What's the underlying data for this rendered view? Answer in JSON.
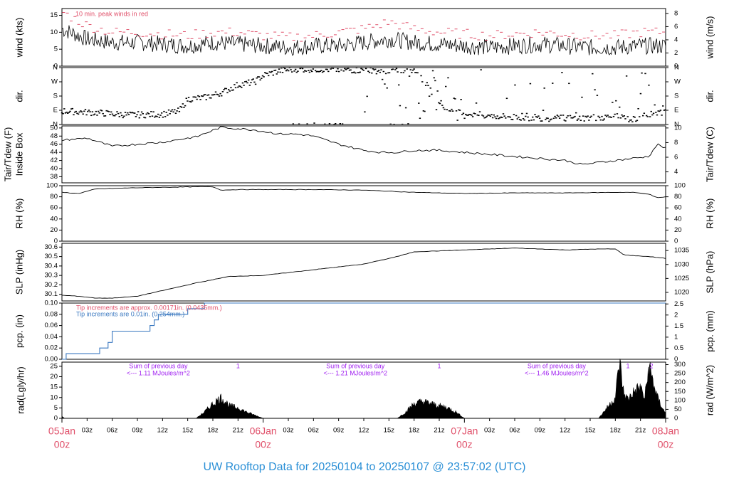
{
  "title": "UW Rooftop Data for 20250104  to  20250107 @ 23:57:02  (UTC)",
  "colors": {
    "title": "#2a8fd6",
    "peak": "#e0506a",
    "precip_line": "#3a78c0",
    "rad_annot": "#a020f0",
    "date_label": "#e0506a",
    "trace": "#000000"
  },
  "chart_data": [
    {
      "type": "line",
      "name": "wind",
      "ylabel_left": "wind (kts)",
      "ylabel_right": "wind (m/s)",
      "ylim": [
        0,
        17
      ],
      "yticks_left": [
        0,
        5,
        10,
        15
      ],
      "yticks_right": [
        0,
        2,
        4,
        6,
        8
      ],
      "annotation": "10 min. peak winds in red",
      "series": [
        {
          "name": "mean",
          "x": [
            0,
            3,
            6,
            9,
            12,
            15,
            18,
            21,
            24,
            27,
            30,
            33,
            36,
            39,
            42,
            45,
            48,
            51,
            54,
            57,
            60,
            63,
            66,
            69,
            72
          ],
          "values": [
            11,
            8,
            7,
            7,
            6.5,
            6,
            7,
            6.5,
            6,
            5.5,
            6,
            6,
            7,
            8,
            7,
            6.5,
            6,
            5.5,
            6,
            6.5,
            6,
            5.5,
            5.5,
            6,
            6
          ]
        },
        {
          "name": "peak",
          "x": [
            0,
            3,
            6,
            9,
            12,
            15,
            18,
            21,
            24,
            27,
            30,
            33,
            36,
            39,
            42,
            45,
            48,
            51,
            54,
            57,
            60,
            63,
            66,
            69,
            72
          ],
          "values": [
            16,
            12,
            10,
            10,
            9.5,
            9,
            10,
            10,
            9,
            8.5,
            9,
            10,
            11,
            13,
            11,
            10,
            9.5,
            9,
            9.5,
            10,
            9.5,
            9,
            9,
            10,
            10
          ]
        }
      ]
    },
    {
      "type": "scatter",
      "name": "direction",
      "ylabel_left": "dir.",
      "ylabel_right": "dir.",
      "ytick_labels": [
        "N",
        "E",
        "S",
        "W",
        "N"
      ],
      "ylim": [
        0,
        360
      ],
      "series": [
        {
          "name": "dir",
          "x": [
            0,
            4,
            8,
            12,
            14,
            15,
            17,
            19,
            21,
            23,
            24,
            26,
            28,
            30,
            34,
            38,
            42,
            46,
            50,
            54,
            58,
            62,
            66,
            68,
            70,
            72
          ],
          "values": [
            85,
            75,
            60,
            65,
            85,
            160,
            170,
            200,
            250,
            270,
            310,
            340,
            350,
            350,
            345,
            340,
            350,
            80,
            60,
            45,
            40,
            40,
            50,
            30,
            60,
            80
          ]
        }
      ]
    },
    {
      "type": "line",
      "name": "temperature",
      "ylabel_left": "Tair/Tdew (F)",
      "ylabel_left2": "Inside Box",
      "ylabel_right": "Tair/Tdew (C)",
      "ylim": [
        36.5,
        50.5
      ],
      "yticks_left": [
        38,
        40,
        42,
        44,
        46,
        48,
        50
      ],
      "yticks_right": [
        4,
        6,
        8,
        10
      ],
      "series": [
        {
          "name": "tair",
          "x": [
            0,
            3,
            6,
            9,
            12,
            15,
            16,
            19,
            20,
            23,
            26,
            28,
            30,
            33,
            36,
            38,
            40,
            42,
            45,
            48,
            51,
            54,
            57,
            60,
            62,
            64,
            66,
            68,
            70,
            71,
            72
          ],
          "values": [
            47,
            47.5,
            45.5,
            46,
            46.5,
            47.5,
            47.8,
            50.2,
            50,
            49.5,
            48.5,
            48.5,
            48,
            46,
            44.5,
            44,
            44,
            44.5,
            44.5,
            44,
            43.5,
            43,
            42.5,
            42,
            41,
            41.5,
            42,
            42.5,
            43,
            46,
            45
          ]
        }
      ]
    },
    {
      "type": "line",
      "name": "rh",
      "ylabel_left": "RH (%)",
      "ylabel_right": "RH (%)",
      "ylim": [
        0,
        100
      ],
      "yticks": [
        0,
        20,
        40,
        60,
        80,
        100
      ],
      "series": [
        {
          "name": "rh",
          "x": [
            0,
            2,
            4,
            8,
            12,
            16,
            18,
            19,
            21,
            24,
            30,
            36,
            42,
            48,
            54,
            60,
            66,
            68,
            70,
            71,
            72
          ],
          "values": [
            88,
            86,
            94,
            96,
            97,
            98,
            98,
            92,
            93,
            93,
            93,
            92,
            88,
            86,
            87,
            87,
            88,
            88,
            85,
            78,
            80
          ]
        }
      ]
    },
    {
      "type": "line",
      "name": "slp",
      "ylabel_left": "SLP (inHg)",
      "ylabel_right": "SLP (hPa)",
      "ylim": [
        30.03,
        30.64
      ],
      "yticks_left": [
        30.1,
        30.2,
        30.3,
        30.4,
        30.5,
        30.6
      ],
      "yticks_right": [
        1020,
        1025,
        1030,
        1035
      ],
      "series": [
        {
          "name": "slp",
          "x": [
            0,
            2,
            4,
            6,
            9,
            12,
            16,
            20,
            24,
            30,
            36,
            40,
            42,
            48,
            54,
            60,
            64,
            66,
            67,
            68,
            70,
            72
          ],
          "values": [
            30.09,
            30.08,
            30.06,
            30.06,
            30.08,
            30.14,
            30.22,
            30.29,
            30.3,
            30.36,
            30.42,
            30.5,
            30.55,
            30.57,
            30.59,
            30.57,
            30.58,
            30.58,
            30.52,
            30.51,
            30.5,
            30.48
          ]
        }
      ]
    },
    {
      "type": "line",
      "name": "precip",
      "ylabel_left": "pcp. (in)",
      "ylabel_right": "pcp. (mm)",
      "ylim": [
        0,
        0.1
      ],
      "yticks_left": [
        0.0,
        0.02,
        0.04,
        0.06,
        0.08,
        0.1
      ],
      "yticks_right": [
        0,
        0.5,
        1,
        1.5,
        2,
        2.5
      ],
      "annotation_red": "Tip increments are approx. 0.00171in. (0.0435mm.)",
      "annotation_blue": "Tip increments are 0.01in. (0.254mm.)",
      "series": [
        {
          "name": "accum",
          "x": [
            0,
            0.5,
            4,
            4.5,
            5,
            5.5,
            6,
            10,
            10.5,
            11,
            11.5,
            14.5,
            15,
            16.5,
            17,
            17.5,
            72
          ],
          "values": [
            0,
            0.01,
            0.01,
            0.02,
            0.02,
            0.03,
            0.05,
            0.05,
            0.06,
            0.07,
            0.08,
            0.08,
            0.09,
            0.09,
            0.1,
            0.1,
            0.1
          ]
        }
      ]
    },
    {
      "type": "area",
      "name": "radiation",
      "ylabel_left": "rad(Lgly/hr)",
      "ylabel_right": "rad (W/m^2)",
      "ylim": [
        0,
        27
      ],
      "yticks_left": [
        0,
        5,
        10,
        15,
        20,
        25
      ],
      "yticks_right": [
        0,
        50,
        100,
        150,
        200,
        250,
        300
      ],
      "annotations": [
        {
          "line1": "Sum of previous day",
          "line2": "<--- 1.11 MJoules/m^2",
          "marker": "1"
        },
        {
          "line1": "Sum of previous day",
          "line2": "<--- 1.21 MJoules/m^2",
          "marker": "1"
        },
        {
          "line1": "Sum of previous day",
          "line2": "<--- 1.46 MJoules/m^2",
          "marker": "1"
        },
        {
          "marker": "2"
        }
      ],
      "series": [
        {
          "name": "rad",
          "x": [
            0,
            0.3,
            16,
            17,
            18,
            19,
            20,
            21,
            22,
            24,
            40,
            41,
            42,
            43,
            44,
            45,
            46,
            47,
            48,
            64,
            65,
            66,
            66.5,
            67,
            67.5,
            68,
            69,
            69.5,
            70,
            71,
            72
          ],
          "values": [
            1,
            0,
            0,
            3,
            7,
            10,
            6,
            5,
            3,
            0,
            0,
            3,
            7,
            8,
            7,
            6,
            5,
            3,
            0,
            0,
            5,
            10,
            27,
            12,
            9,
            12,
            15,
            9,
            25,
            10,
            2
          ]
        }
      ]
    }
  ],
  "x_axis": {
    "hour_ticks": [
      "03z",
      "06z",
      "09z",
      "12z",
      "15z",
      "18z",
      "21z"
    ],
    "days": [
      {
        "date": "05Jan",
        "time": "00z"
      },
      {
        "date": "06Jan",
        "time": "00z"
      },
      {
        "date": "07Jan",
        "time": "00z"
      },
      {
        "date": "08Jan",
        "time": "00z"
      }
    ]
  }
}
